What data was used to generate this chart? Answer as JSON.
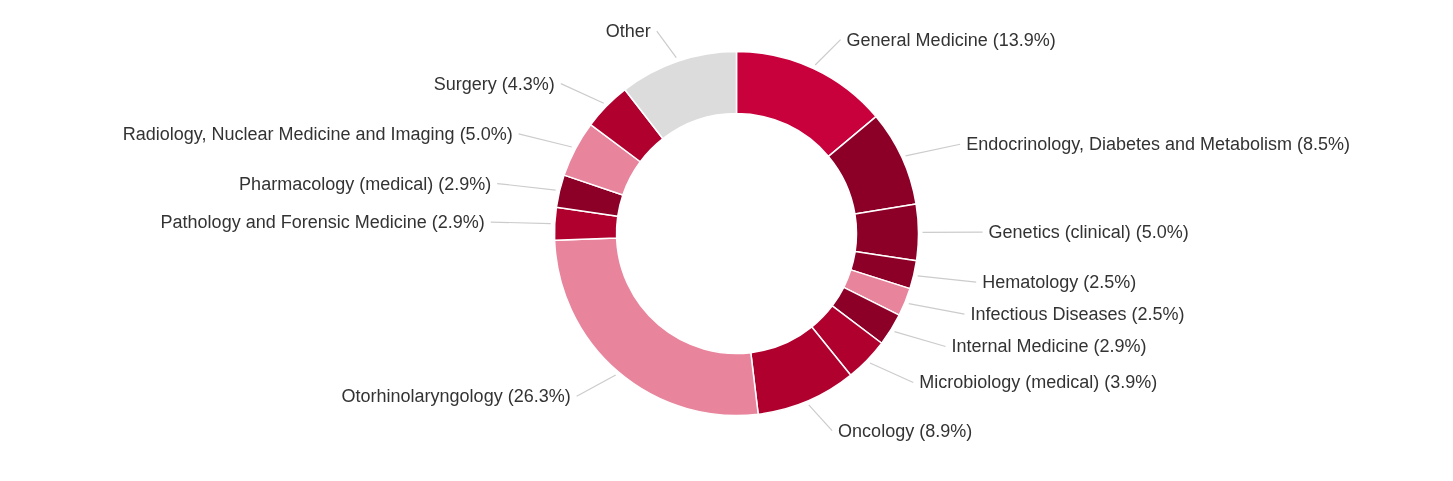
{
  "chart_data": {
    "type": "donut",
    "categories": [
      "General Medicine",
      "Endocrinology, Diabetes and Metabolism",
      "Genetics (clinical)",
      "Hematology",
      "Infectious Diseases",
      "Internal Medicine",
      "Microbiology (medical)",
      "Oncology",
      "Otorhinolaryngology",
      "Pathology and Forensic Medicine",
      "Pharmacology (medical)",
      "Radiology, Nuclear Medicine and Imaging",
      "Surgery",
      "Other"
    ],
    "values": [
      13.9,
      8.5,
      5.0,
      2.5,
      2.5,
      2.9,
      3.9,
      8.9,
      26.3,
      2.9,
      2.9,
      5.0,
      4.3,
      10.5
    ],
    "value_labels": [
      "(13.9%)",
      "(8.5%)",
      "(5.0%)",
      "(2.5%)",
      "(2.5%)",
      "(2.9%)",
      "(3.9%)",
      "(8.9%)",
      "(26.3%)",
      "(2.9%)",
      "(2.9%)",
      "(5.0%)",
      "(4.3%)",
      null
    ],
    "colors": [
      "#c8003c",
      "#8c0028",
      "#8c0028",
      "#8c0028",
      "#e8849c",
      "#8c0028",
      "#b0002e",
      "#b0002e",
      "#e8849c",
      "#b0002e",
      "#8c0028",
      "#e8849c",
      "#b0002e",
      "#dcdcdc"
    ]
  }
}
